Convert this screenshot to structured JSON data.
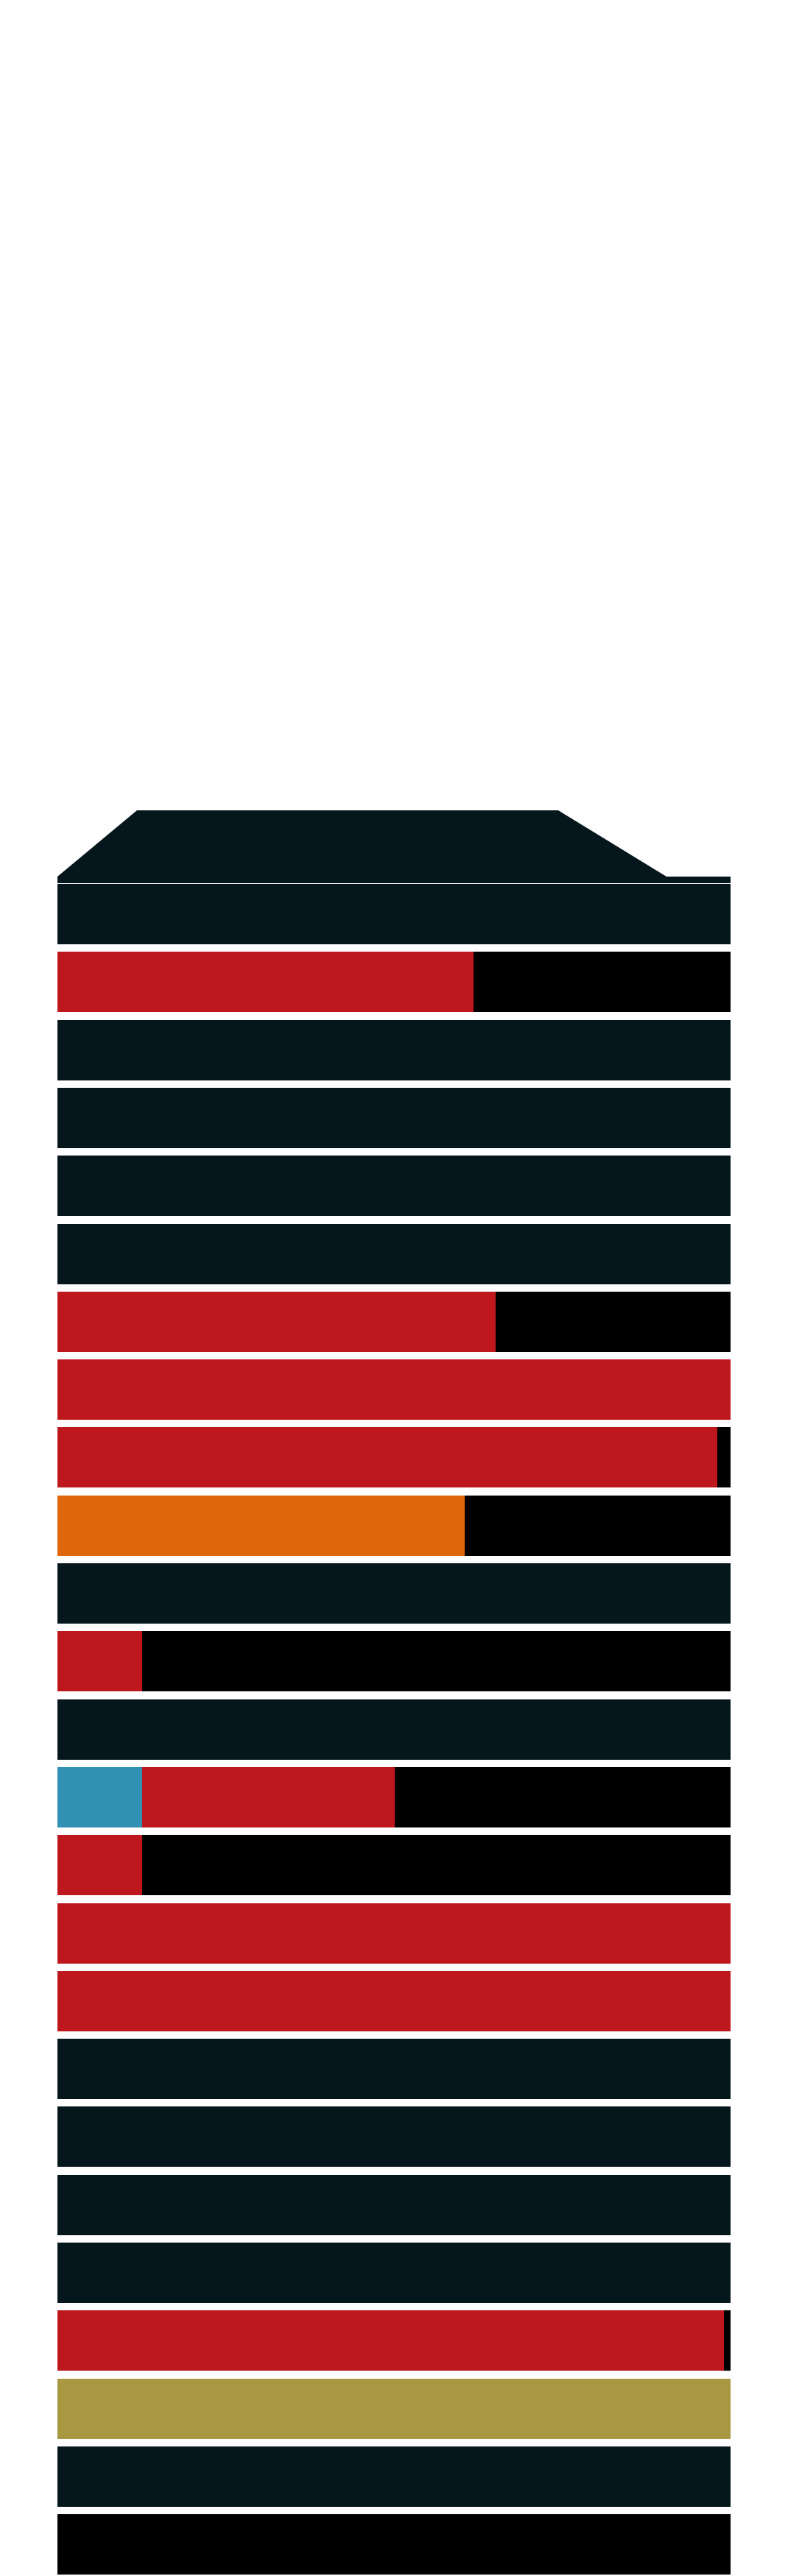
{
  "colors": {
    "background": "#fefefe",
    "dark": "#06161d",
    "black": "#000000",
    "red": "#be171e",
    "orange": "#e0660c",
    "blue": "#3190b4",
    "olive": "#a89841"
  },
  "rows": [
    {
      "segments": [
        {
          "color": "dark",
          "fraction": 1.0
        }
      ]
    },
    {
      "segments": [
        {
          "color": "red",
          "fraction": 0.618
        },
        {
          "color": "black",
          "fraction": 0.382
        }
      ]
    },
    {
      "segments": [
        {
          "color": "dark",
          "fraction": 1.0
        }
      ]
    },
    {
      "segments": [
        {
          "color": "dark",
          "fraction": 1.0
        }
      ]
    },
    {
      "segments": [
        {
          "color": "dark",
          "fraction": 1.0
        }
      ]
    },
    {
      "segments": [
        {
          "color": "dark",
          "fraction": 1.0
        }
      ]
    },
    {
      "segments": [
        {
          "color": "red",
          "fraction": 0.651
        },
        {
          "color": "black",
          "fraction": 0.349
        }
      ]
    },
    {
      "segments": [
        {
          "color": "red",
          "fraction": 1.0
        }
      ]
    },
    {
      "segments": [
        {
          "color": "red",
          "fraction": 0.98
        },
        {
          "color": "black",
          "fraction": 0.02
        }
      ]
    },
    {
      "segments": [
        {
          "color": "orange",
          "fraction": 0.605
        },
        {
          "color": "black",
          "fraction": 0.395
        }
      ]
    },
    {
      "segments": [
        {
          "color": "dark",
          "fraction": 1.0
        }
      ]
    },
    {
      "segments": [
        {
          "color": "red",
          "fraction": 0.126
        },
        {
          "color": "black",
          "fraction": 0.874
        }
      ]
    },
    {
      "segments": [
        {
          "color": "dark",
          "fraction": 1.0
        }
      ]
    },
    {
      "segments": [
        {
          "color": "blue",
          "fraction": 0.126
        },
        {
          "color": "red",
          "fraction": 0.375
        },
        {
          "color": "black",
          "fraction": 0.499
        }
      ]
    },
    {
      "segments": [
        {
          "color": "red",
          "fraction": 0.126
        },
        {
          "color": "black",
          "fraction": 0.874
        }
      ]
    },
    {
      "segments": [
        {
          "color": "red",
          "fraction": 1.0
        }
      ]
    },
    {
      "segments": [
        {
          "color": "red",
          "fraction": 1.0
        }
      ]
    },
    {
      "segments": [
        {
          "color": "dark",
          "fraction": 1.0
        }
      ]
    },
    {
      "segments": [
        {
          "color": "dark",
          "fraction": 1.0
        }
      ]
    },
    {
      "segments": [
        {
          "color": "dark",
          "fraction": 1.0
        }
      ]
    },
    {
      "segments": [
        {
          "color": "dark",
          "fraction": 1.0
        }
      ]
    },
    {
      "segments": [
        {
          "color": "red",
          "fraction": 0.99
        },
        {
          "color": "black",
          "fraction": 0.01
        }
      ]
    },
    {
      "segments": [
        {
          "color": "olive",
          "fraction": 1.0
        }
      ]
    },
    {
      "segments": [
        {
          "color": "dark",
          "fraction": 1.0
        }
      ]
    },
    {
      "segments": [
        {
          "color": "black",
          "fraction": 1.0
        }
      ]
    }
  ]
}
